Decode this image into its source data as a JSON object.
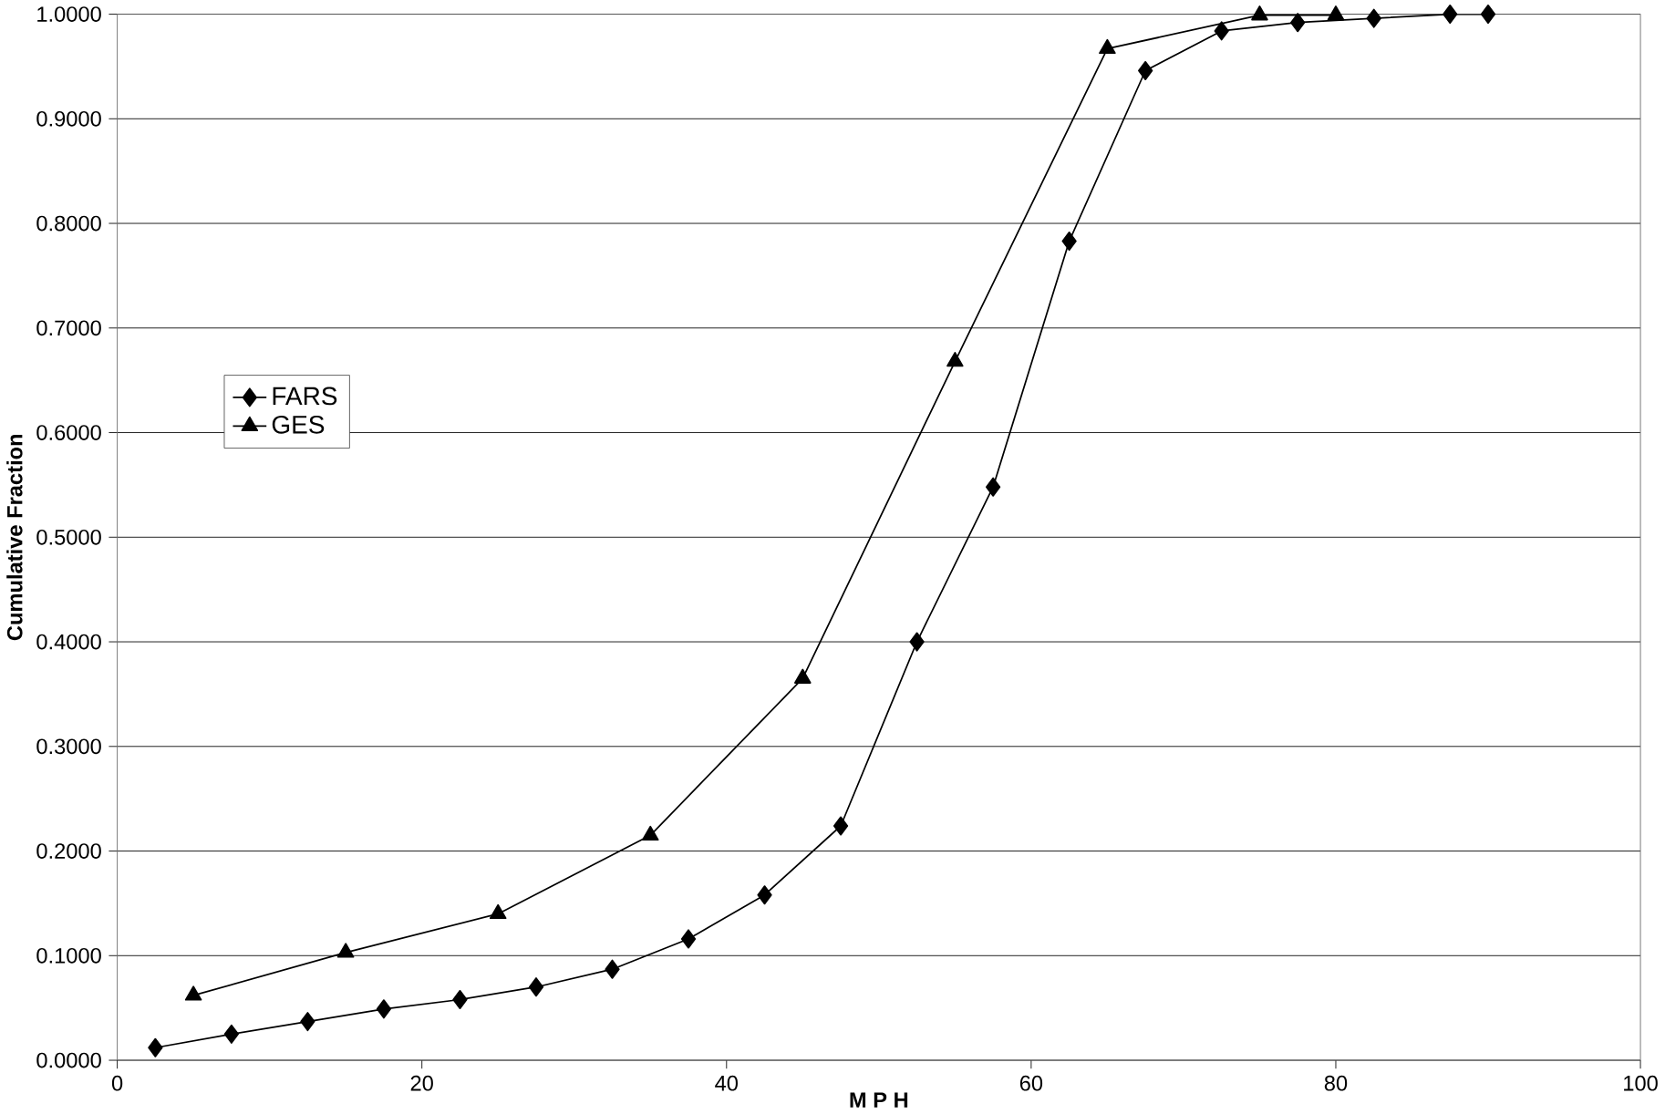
{
  "chart_data": {
    "type": "line",
    "xlabel": "M P H",
    "ylabel": "Cumulative Fraction",
    "xlim": [
      0,
      100
    ],
    "xticks": [
      0,
      20,
      40,
      60,
      80,
      100
    ],
    "ylim": [
      0,
      1
    ],
    "yticks": [
      {
        "value": 0,
        "label": "0.0000"
      },
      {
        "value": 0.1,
        "label": "0.1000"
      },
      {
        "value": 0.2,
        "label": "0.2000"
      },
      {
        "value": 0.3,
        "label": "0.3000"
      },
      {
        "value": 0.4,
        "label": "0.4000"
      },
      {
        "value": 0.5,
        "label": "0.5000"
      },
      {
        "value": 0.6,
        "label": "0.6000"
      },
      {
        "value": 0.7,
        "label": "0.7000"
      },
      {
        "value": 0.8,
        "label": "0.8000"
      },
      {
        "value": 0.9,
        "label": "0.9000"
      },
      {
        "value": 1,
        "label": "1.0000"
      }
    ],
    "grid": "y",
    "legend": "left",
    "series": [
      {
        "name": "FARS",
        "color": "#000000",
        "marker": "diamond",
        "x": [
          2.5,
          7.5,
          12.5,
          17.5,
          22.5,
          27.5,
          32.5,
          37.5,
          42.5,
          47.5,
          52.5,
          57.5,
          62.5,
          67.5,
          72.5,
          77.5,
          82.5,
          87.5,
          90
        ],
        "values": [
          0.012,
          0.025,
          0.037,
          0.049,
          0.058,
          0.07,
          0.087,
          0.116,
          0.158,
          0.224,
          0.4,
          0.548,
          0.783,
          0.946,
          0.984,
          0.992,
          0.996,
          1.0,
          1.0
        ]
      },
      {
        "name": "GES",
        "color": "#000000",
        "marker": "triangle",
        "x": [
          5,
          15,
          25,
          35,
          45,
          55,
          65,
          75,
          80
        ],
        "values": [
          0.062,
          0.103,
          0.14,
          0.215,
          0.365,
          0.668,
          0.967,
          0.999,
          0.999
        ]
      }
    ]
  }
}
